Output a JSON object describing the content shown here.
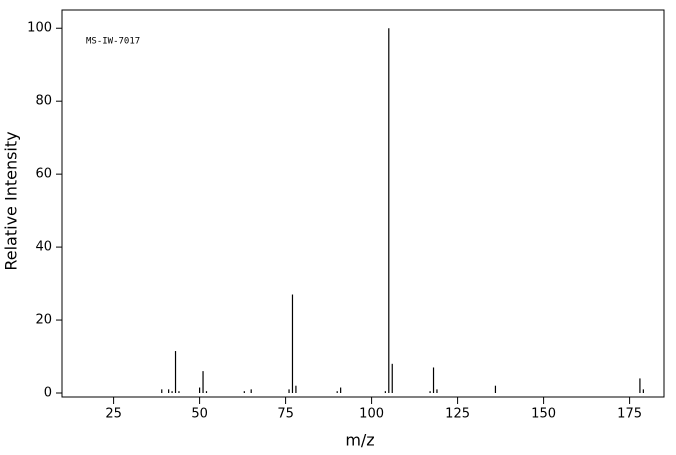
{
  "chart_data": {
    "type": "stem",
    "annotation": "MS-IW-7017",
    "x_label": "m/z",
    "y_label": "Relative Intensity",
    "x": [
      39,
      41,
      42,
      43,
      44,
      50,
      51,
      52,
      63,
      65,
      76,
      77,
      78,
      90,
      91,
      104,
      105,
      106,
      117,
      118,
      119,
      136,
      178,
      179
    ],
    "values": [
      1,
      1,
      0.5,
      11.5,
      0.5,
      1.5,
      6,
      0.5,
      0.5,
      1,
      1,
      27,
      2,
      0.5,
      1.5,
      0.5,
      100,
      8,
      0.5,
      7,
      1,
      2,
      4,
      1
    ],
    "color": "#000000",
    "xlim": [
      10,
      185
    ],
    "xticks": [
      25,
      50,
      75,
      100,
      125,
      150,
      175
    ],
    "ylim": [
      0,
      105
    ],
    "yticks": [
      0,
      20,
      40,
      60,
      80,
      100
    ]
  }
}
